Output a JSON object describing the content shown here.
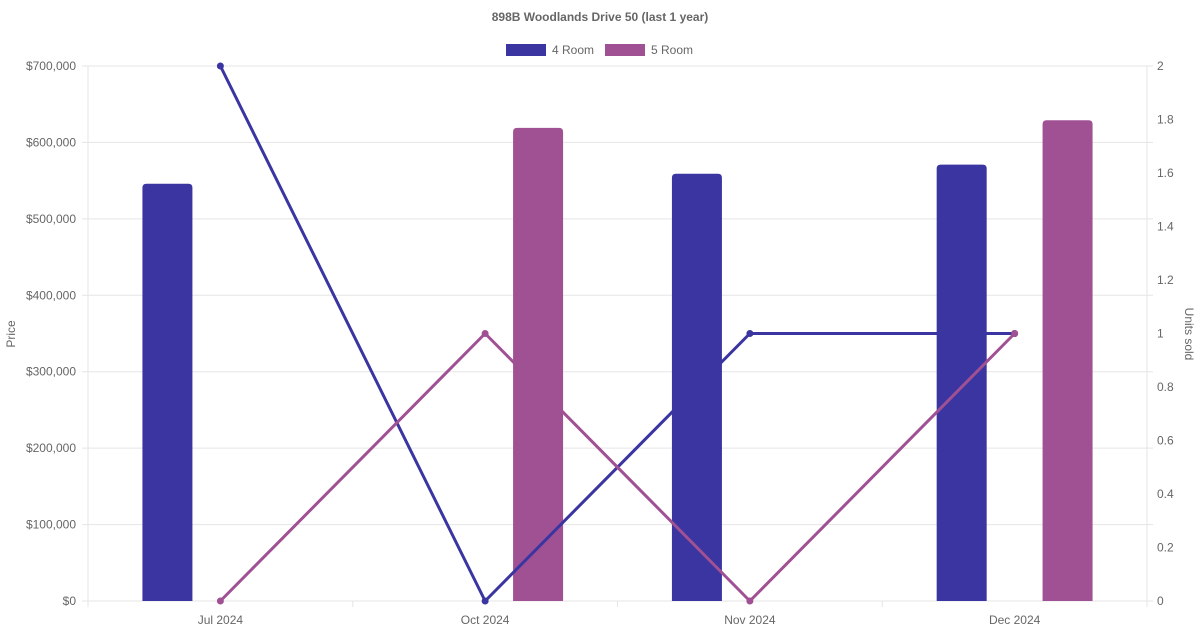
{
  "chart_data": {
    "type": "bar",
    "title": "898B Woodlands Drive 50 (last 1 year)",
    "categories": [
      "Jul 2024",
      "Oct 2024",
      "Nov 2024",
      "Dec 2024"
    ],
    "y_left": {
      "label": "Price",
      "range": [
        0,
        700000
      ],
      "ticks": [
        "$0",
        "$100,000",
        "$200,000",
        "$300,000",
        "$400,000",
        "$500,000",
        "$600,000",
        "$700,000"
      ]
    },
    "y_right": {
      "label": "Units sold",
      "range": [
        0,
        2
      ],
      "ticks": [
        "0",
        "0.2",
        "0.4",
        "0.6",
        "0.8",
        "1",
        "1.2",
        "1.4",
        "1.6",
        "1.8",
        "2"
      ]
    },
    "series": [
      {
        "name": "4 Room",
        "type": "bar",
        "axis": "left",
        "color": "#3a35a0",
        "values": [
          546000,
          null,
          559000,
          571000
        ]
      },
      {
        "name": "5 Room",
        "type": "bar",
        "axis": "left",
        "color": "#a05193",
        "values": [
          null,
          619000,
          null,
          629000
        ]
      },
      {
        "name": "4 Room",
        "type": "line",
        "axis": "right",
        "color": "#3a35a0",
        "values": [
          2,
          0,
          1,
          1
        ]
      },
      {
        "name": "5 Room",
        "type": "line",
        "axis": "right",
        "color": "#a05193",
        "values": [
          0,
          1,
          0,
          1
        ]
      }
    ],
    "legend": [
      {
        "name": "4 Room",
        "color": "#3a35a0"
      },
      {
        "name": "5 Room",
        "color": "#a05193"
      }
    ],
    "legend_position": "top-center",
    "grid": true
  }
}
